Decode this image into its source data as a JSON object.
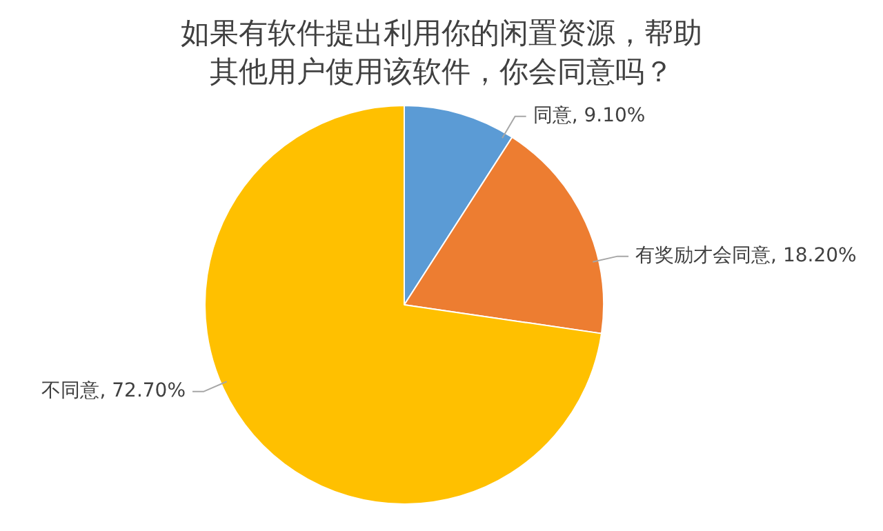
{
  "chart_data": {
    "type": "pie",
    "title": "如果有软件提出利用你的闲置资源，帮助其他用户使用该软件，你会同意吗？",
    "categories": [
      "同意",
      "有奖励才会同意",
      "不同意"
    ],
    "values": [
      9.1,
      18.2,
      72.7
    ],
    "value_labels": [
      "9.10%",
      "18.20%",
      "72.70%"
    ],
    "colors": [
      "#5b9bd5",
      "#ed7d31",
      "#ffc000"
    ],
    "legend": false
  }
}
